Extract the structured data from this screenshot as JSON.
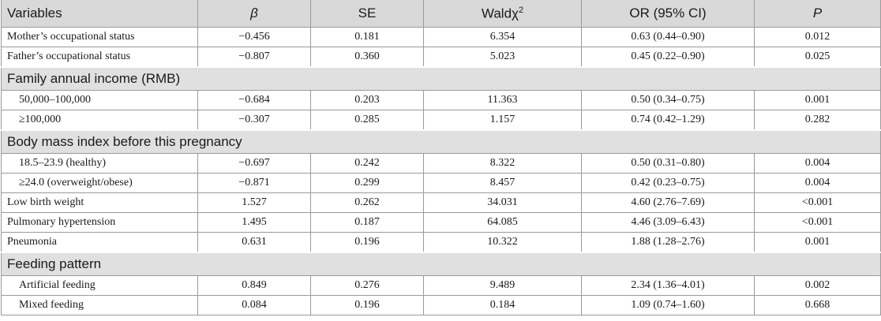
{
  "table": {
    "headers": [
      "Variables",
      "β",
      "SE",
      "Waldχ",
      "OR (95% CI)",
      "P"
    ],
    "header_sup": "2",
    "rows": [
      {
        "kind": "data",
        "indent": false,
        "cells": [
          "Mother’s occupational status",
          "−0.456",
          "0.181",
          "6.354",
          "0.63 (0.44–0.90)",
          "0.012"
        ]
      },
      {
        "kind": "data",
        "indent": false,
        "cells": [
          "Father’s occupational status",
          "−0.807",
          "0.360",
          "5.023",
          "0.45 (0.22–0.90)",
          "0.025"
        ]
      },
      {
        "kind": "section",
        "label": "Family annual income (RMB)"
      },
      {
        "kind": "data",
        "indent": true,
        "cells": [
          "50,000–100,000",
          "−0.684",
          "0.203",
          "11.363",
          "0.50 (0.34–0.75)",
          "0.001"
        ]
      },
      {
        "kind": "data",
        "indent": true,
        "cells": [
          "≥100,000",
          "−0.307",
          "0.285",
          "1.157",
          "0.74 (0.42–1.29)",
          "0.282"
        ]
      },
      {
        "kind": "section",
        "label": "Body mass index before this pregnancy"
      },
      {
        "kind": "data",
        "indent": true,
        "cells": [
          "18.5–23.9 (healthy)",
          "−0.697",
          "0.242",
          "8.322",
          "0.50 (0.31–0.80)",
          "0.004"
        ]
      },
      {
        "kind": "data",
        "indent": true,
        "cells": [
          "≥24.0 (overweight/obese)",
          "−0.871",
          "0.299",
          "8.457",
          "0.42 (0.23–0.75)",
          "0.004"
        ]
      },
      {
        "kind": "data",
        "indent": false,
        "cells": [
          "Low birth weight",
          "1.527",
          "0.262",
          "34.031",
          "4.60 (2.76–7.69)",
          "<0.001"
        ]
      },
      {
        "kind": "data",
        "indent": false,
        "cells": [
          "Pulmonary hypertension",
          "1.495",
          "0.187",
          "64.085",
          "4.46 (3.09–6.43)",
          "<0.001"
        ]
      },
      {
        "kind": "data",
        "indent": false,
        "cells": [
          "Pneumonia",
          "0.631",
          "0.196",
          "10.322",
          "1.88 (1.28–2.76)",
          "0.001"
        ]
      },
      {
        "kind": "section",
        "label": "Feeding pattern"
      },
      {
        "kind": "data",
        "indent": true,
        "cells": [
          "Artificial feeding",
          "0.849",
          "0.276",
          "9.489",
          "2.34 (1.36–4.01)",
          "0.002"
        ]
      },
      {
        "kind": "data",
        "indent": true,
        "cells": [
          "Mixed feeding",
          "0.084",
          "0.196",
          "0.184",
          "1.09 (0.74–1.60)",
          "0.668"
        ]
      }
    ]
  }
}
